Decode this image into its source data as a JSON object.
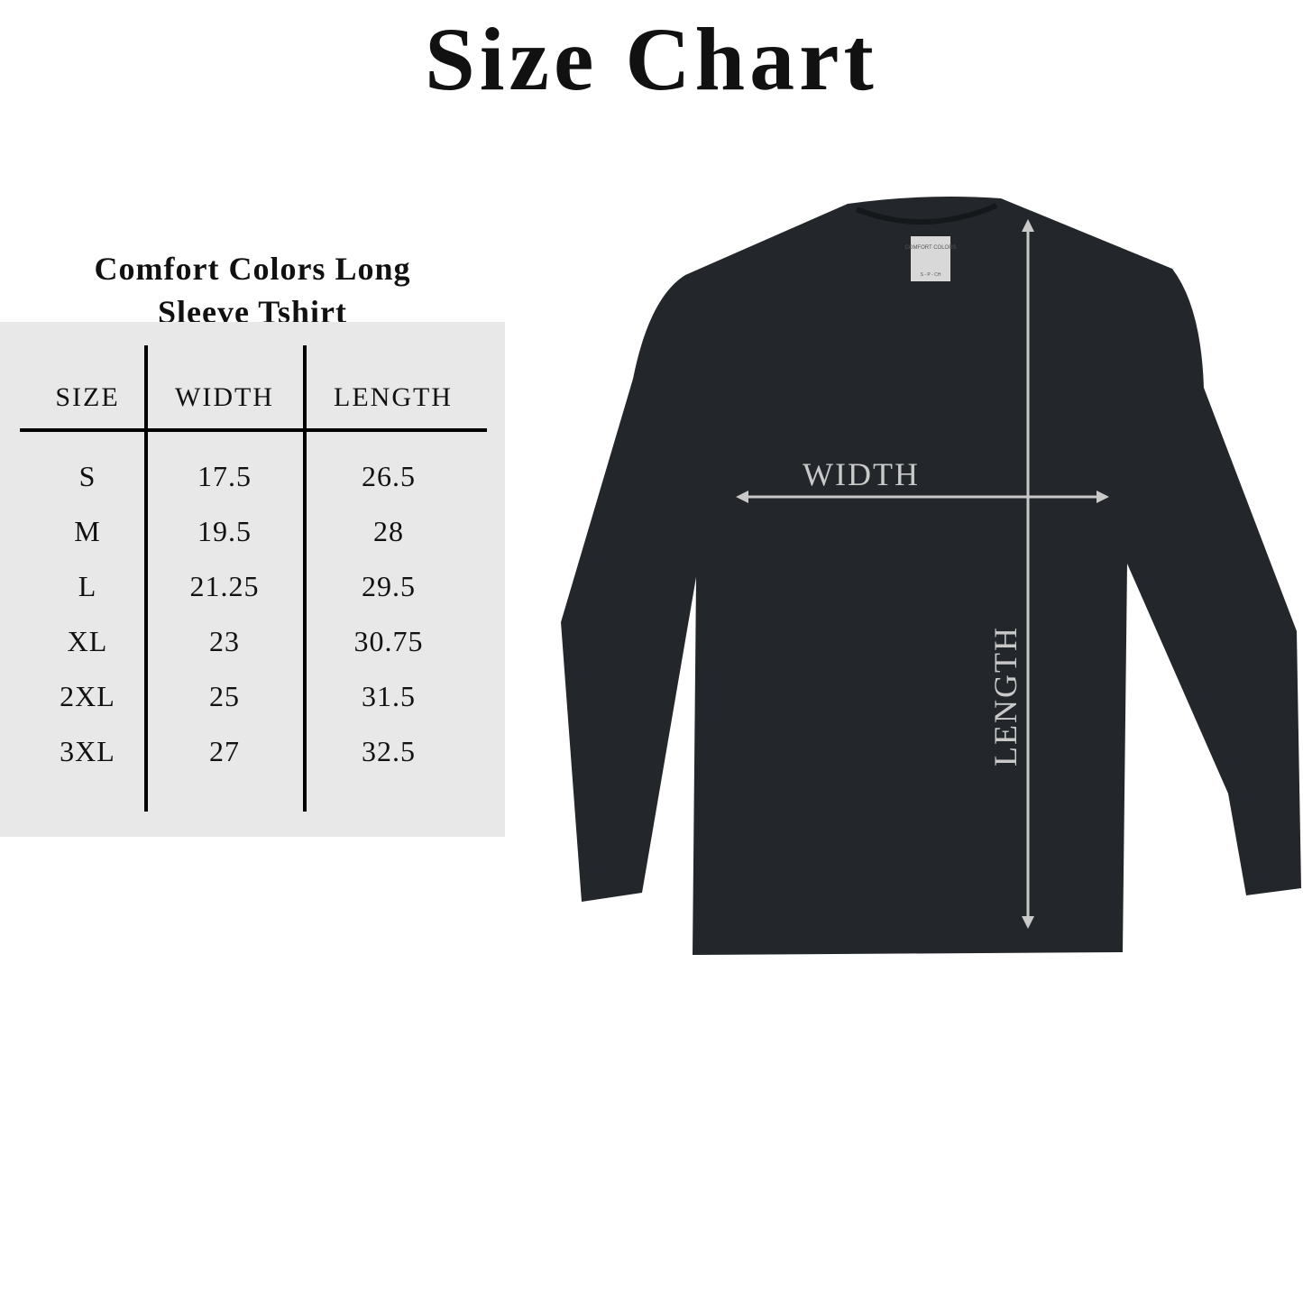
{
  "title": "Size Chart",
  "subtitle": [
    "Comfort Colors Long",
    "Sleeve Tshirt"
  ],
  "table": {
    "headers": [
      "SIZE",
      "WIDTH",
      "LENGTH"
    ],
    "rows": [
      [
        "S",
        "17.5",
        "26.5"
      ],
      [
        "M",
        "19.5",
        "28"
      ],
      [
        "L",
        "21.25",
        "29.5"
      ],
      [
        "XL",
        "23",
        "30.75"
      ],
      [
        "2XL",
        "25",
        "31.5"
      ],
      [
        "3XL",
        "27",
        "32.5"
      ]
    ]
  },
  "diagram": {
    "width_label": "WIDTH",
    "length_label": "LENGTH",
    "shirt_color": "#23272b",
    "arrow_color": "#c9c9c9",
    "tag_text": "COMFORT COLORS",
    "tag_size_text": "S - P - CH"
  },
  "panel_color": "#e8e8e8"
}
